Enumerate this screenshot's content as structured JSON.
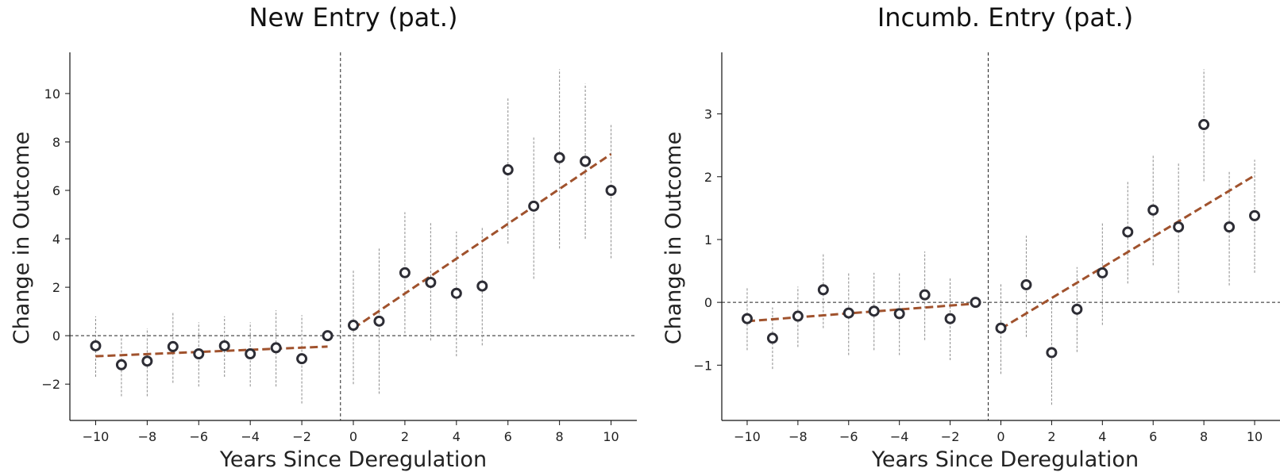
{
  "chart_data": [
    {
      "type": "scatter",
      "title": "New Entry (pat.)",
      "xlabel": "Years Since Deregulation",
      "ylabel": "Change in Outcome",
      "xlim": [
        -11,
        11
      ],
      "ylim": [
        -3.5,
        11.7
      ],
      "xticks": [
        -10,
        -8,
        -6,
        -4,
        -2,
        0,
        2,
        4,
        6,
        8,
        10
      ],
      "yticks": [
        -2,
        0,
        2,
        4,
        6,
        8,
        10
      ],
      "points": [
        {
          "x": -10,
          "y": -0.42,
          "lo": -1.7,
          "hi": 0.8
        },
        {
          "x": -9,
          "y": -1.2,
          "lo": -2.5,
          "hi": 0.0
        },
        {
          "x": -8,
          "y": -1.05,
          "lo": -2.5,
          "hi": 0.3
        },
        {
          "x": -7,
          "y": -0.45,
          "lo": -1.95,
          "hi": 1.0
        },
        {
          "x": -6,
          "y": -0.75,
          "lo": -2.1,
          "hi": 0.55
        },
        {
          "x": -5,
          "y": -0.42,
          "lo": -1.7,
          "hi": 0.8
        },
        {
          "x": -4,
          "y": -0.75,
          "lo": -2.1,
          "hi": 0.55
        },
        {
          "x": -3,
          "y": -0.5,
          "lo": -2.1,
          "hi": 1.05
        },
        {
          "x": -2,
          "y": -0.95,
          "lo": -2.8,
          "hi": 0.85
        },
        {
          "x": -1,
          "y": 0.0,
          "lo": 0.0,
          "hi": 0.0
        },
        {
          "x": 0,
          "y": 0.43,
          "lo": -2.0,
          "hi": 2.75
        },
        {
          "x": 1,
          "y": 0.6,
          "lo": -2.4,
          "hi": 3.6
        },
        {
          "x": 2,
          "y": 2.6,
          "lo": 0.1,
          "hi": 5.1
        },
        {
          "x": 3,
          "y": 2.2,
          "lo": -0.2,
          "hi": 4.7
        },
        {
          "x": 4,
          "y": 1.75,
          "lo": -0.85,
          "hi": 4.3
        },
        {
          "x": 5,
          "y": 2.05,
          "lo": -0.4,
          "hi": 4.5
        },
        {
          "x": 6,
          "y": 6.85,
          "lo": 3.8,
          "hi": 9.8
        },
        {
          "x": 7,
          "y": 5.35,
          "lo": 2.35,
          "hi": 8.2
        },
        {
          "x": 8,
          "y": 7.35,
          "lo": 3.6,
          "hi": 11.0
        },
        {
          "x": 9,
          "y": 7.2,
          "lo": 4.0,
          "hi": 10.4
        },
        {
          "x": 10,
          "y": 6.0,
          "lo": 3.2,
          "hi": 8.7
        }
      ],
      "trend_lines": [
        {
          "x": [
            -10,
            -1
          ],
          "y": [
            -0.85,
            -0.45
          ]
        },
        {
          "x": [
            0,
            10
          ],
          "y": [
            0.3,
            7.5
          ]
        }
      ],
      "colors": {
        "marker": "#2d2d35",
        "trend": "#a0522d",
        "errorbar": "#8a8a8a",
        "refline": "#222222"
      }
    },
    {
      "type": "scatter",
      "title": "Incumb. Entry (pat.)",
      "xlabel": "Years Since Deregulation",
      "ylabel": "Change in Outcome",
      "xlim": [
        -11,
        11
      ],
      "ylim": [
        -1.88,
        3.98
      ],
      "xticks": [
        -10,
        -8,
        -6,
        -4,
        -2,
        0,
        2,
        4,
        6,
        8,
        10
      ],
      "yticks": [
        -1,
        0,
        1,
        2,
        3
      ],
      "points": [
        {
          "x": -10,
          "y": -0.26,
          "lo": -0.76,
          "hi": 0.23
        },
        {
          "x": -9,
          "y": -0.57,
          "lo": -1.06,
          "hi": -0.08
        },
        {
          "x": -8,
          "y": -0.22,
          "lo": -0.71,
          "hi": 0.25
        },
        {
          "x": -7,
          "y": 0.2,
          "lo": -0.41,
          "hi": 0.79
        },
        {
          "x": -6,
          "y": -0.17,
          "lo": -0.84,
          "hi": 0.47
        },
        {
          "x": -5,
          "y": -0.14,
          "lo": -0.76,
          "hi": 0.47
        },
        {
          "x": -4,
          "y": -0.18,
          "lo": -0.84,
          "hi": 0.47
        },
        {
          "x": -3,
          "y": 0.12,
          "lo": -0.6,
          "hi": 0.81
        },
        {
          "x": -2,
          "y": -0.26,
          "lo": -0.92,
          "hi": 0.39
        },
        {
          "x": -1,
          "y": 0.0,
          "lo": 0.0,
          "hi": 0.0
        },
        {
          "x": 0,
          "y": -0.41,
          "lo": -1.14,
          "hi": 0.29
        },
        {
          "x": 1,
          "y": 0.28,
          "lo": -0.55,
          "hi": 1.06
        },
        {
          "x": 2,
          "y": -0.8,
          "lo": -1.63,
          "hi": 0.03
        },
        {
          "x": 3,
          "y": -0.11,
          "lo": -0.79,
          "hi": 0.56
        },
        {
          "x": 4,
          "y": 0.47,
          "lo": -0.36,
          "hi": 1.26
        },
        {
          "x": 5,
          "y": 1.12,
          "lo": 0.3,
          "hi": 1.92
        },
        {
          "x": 6,
          "y": 1.47,
          "lo": 0.59,
          "hi": 2.35
        },
        {
          "x": 7,
          "y": 1.2,
          "lo": 0.15,
          "hi": 2.21
        },
        {
          "x": 8,
          "y": 2.83,
          "lo": 1.93,
          "hi": 3.71
        },
        {
          "x": 9,
          "y": 1.2,
          "lo": 0.27,
          "hi": 2.1
        },
        {
          "x": 10,
          "y": 1.38,
          "lo": 0.47,
          "hi": 2.27
        }
      ],
      "trend_lines": [
        {
          "x": [
            -10,
            -1
          ],
          "y": [
            -0.3,
            -0.02
          ]
        },
        {
          "x": [
            0,
            10
          ],
          "y": [
            -0.42,
            2.02
          ]
        }
      ],
      "colors": {
        "marker": "#2d2d35",
        "trend": "#a0522d",
        "errorbar": "#8a8a8a",
        "refline": "#222222"
      }
    }
  ]
}
